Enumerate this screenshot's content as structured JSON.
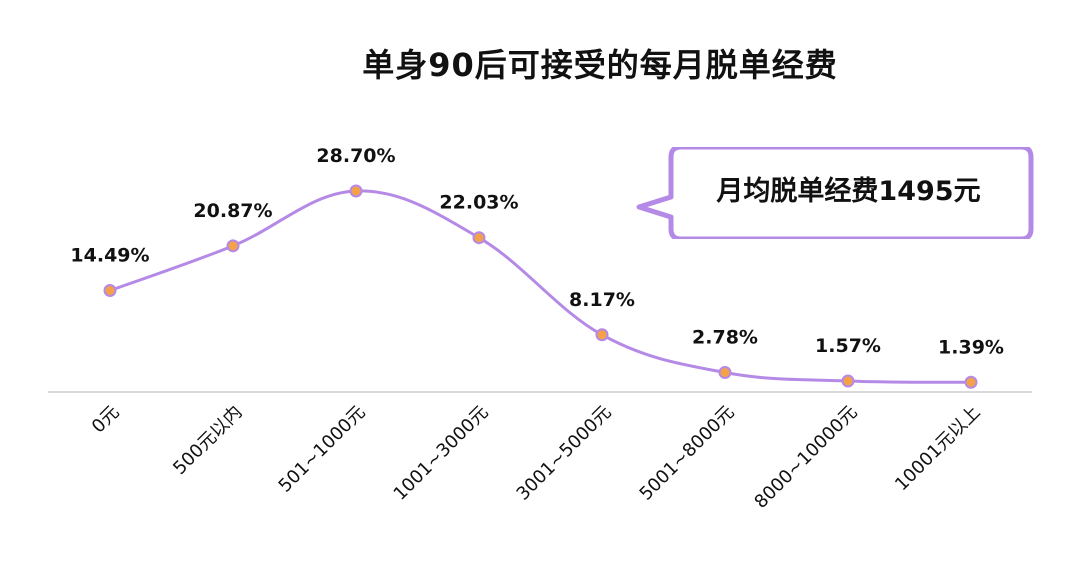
{
  "chart_data": {
    "type": "line",
    "title": "单身90后可接受的每月脱单经费",
    "categories": [
      "0元",
      "500元以内",
      "501~1000元",
      "1001~3000元",
      "3001~5000元",
      "5001~8000元",
      "8000~10000元",
      "10001元以上"
    ],
    "series": [
      {
        "values": [
          14.49,
          20.87,
          28.7,
          22.03,
          8.17,
          2.78,
          1.57,
          1.39
        ],
        "labels": [
          "14.49%",
          "20.87%",
          "28.70%",
          "22.03%",
          "8.17%",
          "2.78%",
          "1.57%",
          "1.39%"
        ]
      }
    ],
    "ylim": [
      0,
      35
    ],
    "unit": "%",
    "grid": false,
    "annotation": "月均脱单经费1495元",
    "colors": {
      "line": "#b58ae6",
      "marker_fill": "#f3a24a",
      "callout_border": "#b58ae6",
      "axis": "#d9d9d9",
      "text": "#111111"
    }
  }
}
